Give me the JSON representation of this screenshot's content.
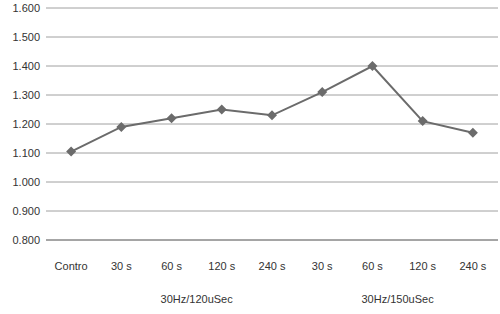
{
  "chart_data": {
    "type": "line",
    "categories": [
      "Contro",
      "30 s",
      "60 s",
      "120 s",
      "240 s",
      "30 s",
      "60 s",
      "120 s",
      "240 s"
    ],
    "values": [
      1.105,
      1.19,
      1.22,
      1.25,
      1.23,
      1.31,
      1.4,
      1.21,
      1.17
    ],
    "groups": [
      {
        "name": "30Hz/120uSec",
        "span": [
          1,
          4
        ]
      },
      {
        "name": "30Hz/150uSec",
        "span": [
          5,
          8
        ]
      }
    ],
    "color": "#6b6b6b",
    "marker": "diamond",
    "line_style": "solid",
    "ylim": [
      0.8,
      1.6
    ],
    "yticks": [
      {
        "value": 0.8,
        "label": "0.800"
      },
      {
        "value": 0.9,
        "label": "0.900"
      },
      {
        "value": 1.0,
        "label": "1.000"
      },
      {
        "value": 1.1,
        "label": "1.100"
      },
      {
        "value": 1.2,
        "label": "1.200"
      },
      {
        "value": 1.3,
        "label": "1.300"
      },
      {
        "value": 1.4,
        "label": "1.400"
      },
      {
        "value": 1.5,
        "label": "1.500"
      },
      {
        "value": 1.6,
        "label": "1.600"
      }
    ],
    "grid": true
  }
}
